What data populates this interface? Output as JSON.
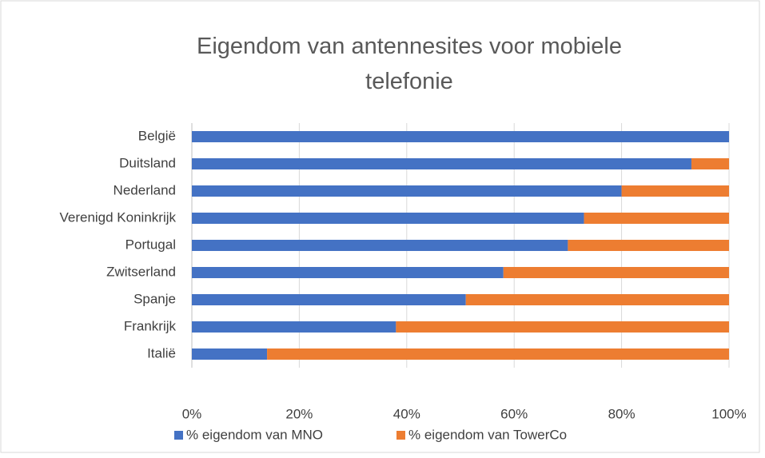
{
  "chart_data": {
    "type": "stacked_barh",
    "title": "Eigendom van antennesites voor mobiele telefonie",
    "categories": [
      "België",
      "Duitsland",
      "Nederland",
      "Verenigd Koninkrijk",
      "Portugal",
      "Zwitserland",
      "Spanje",
      "Frankrijk",
      "Italië"
    ],
    "series": [
      {
        "name": "% eigendom van MNO",
        "color": "#4472c4",
        "values": [
          100,
          93,
          80,
          73,
          70,
          58,
          51,
          38,
          14
        ]
      },
      {
        "name": "% eigendom van TowerCo",
        "color": "#ed7d31",
        "values": [
          0,
          7,
          20,
          27,
          30,
          42,
          49,
          62,
          86
        ]
      }
    ],
    "xlim": [
      0,
      100
    ],
    "xticks": [
      {
        "value": 0,
        "label": "0%"
      },
      {
        "value": 20,
        "label": "20%"
      },
      {
        "value": 40,
        "label": "40%"
      },
      {
        "value": 60,
        "label": "60%"
      },
      {
        "value": 80,
        "label": "80%"
      },
      {
        "value": 100,
        "label": "100%"
      }
    ],
    "grid": true,
    "legend": "bottom"
  }
}
